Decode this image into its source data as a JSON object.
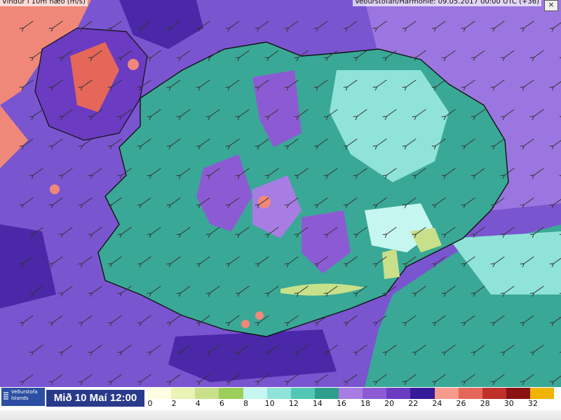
{
  "header": {
    "left_title": "Vindur í 10m hæð (m/s)",
    "right_title": "Veðurstofan/Harmonie: 09.05.2017 00:00 UTC (+36)",
    "close_label": "×"
  },
  "footer": {
    "logo_text": "Veðurstofa Íslands",
    "date_label": "Mið 10 Maí 12:00"
  },
  "legend": {
    "ticks": [
      "0",
      "2",
      "4",
      "6",
      "8",
      "10",
      "12",
      "14",
      "16",
      "18",
      "20",
      "22",
      "24",
      "26",
      "28",
      "30",
      "32"
    ],
    "colors": [
      "#fdfde0",
      "#e8f3b4",
      "#c8e08a",
      "#9ccf5a",
      "#c6f6f0",
      "#8fe3d8",
      "#52c7b6",
      "#2e9e8c",
      "#a77de3",
      "#8c5bd4",
      "#6b3bc1",
      "#351a9a",
      "#f59a8c",
      "#e5675a",
      "#c0312b",
      "#8a1212",
      "#f0b400"
    ]
  },
  "map": {
    "region": "Iceland",
    "colors": {
      "ocean_wind": "#7a55d0",
      "strong_wind": "#f0887a",
      "calm": "#3aa896",
      "coast_line": "#111111"
    }
  }
}
